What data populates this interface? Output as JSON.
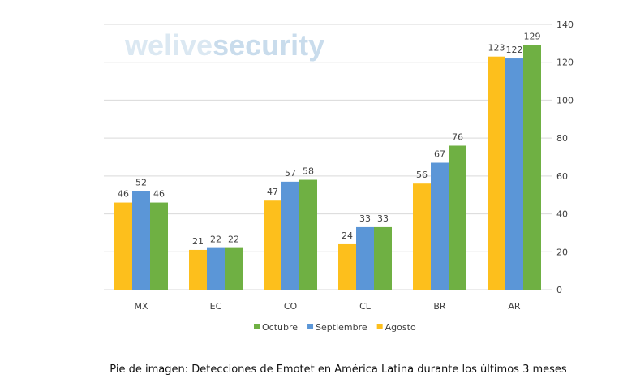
{
  "watermark": {
    "light": "welive",
    "bold": "security"
  },
  "caption": "Pie de imagen: Detecciones de Emotet en América Latina durante los últimos 3 meses",
  "colors": {
    "Agosto": "#fdbf1c",
    "Septiembre": "#5b96d7",
    "Octubre": "#6fb043",
    "grid": "#d9d9d9",
    "text": "#404040"
  },
  "chart_data": {
    "type": "bar",
    "categories": [
      "MX",
      "EC",
      "CO",
      "CL",
      "BR",
      "AR"
    ],
    "series": [
      {
        "name": "Agosto",
        "values": [
          46,
          21,
          47,
          24,
          56,
          123
        ]
      },
      {
        "name": "Septiembre",
        "values": [
          52,
          22,
          57,
          33,
          67,
          122
        ]
      },
      {
        "name": "Octubre",
        "values": [
          46,
          22,
          58,
          33,
          76,
          129
        ]
      }
    ],
    "legend_order": [
      "Octubre",
      "Septiembre",
      "Agosto"
    ],
    "y_ticks": [
      0,
      20,
      40,
      60,
      80,
      100,
      120,
      140
    ],
    "ylim": [
      0,
      140
    ],
    "y_axis_side": "right",
    "grid": true,
    "legend_position": "bottom"
  }
}
